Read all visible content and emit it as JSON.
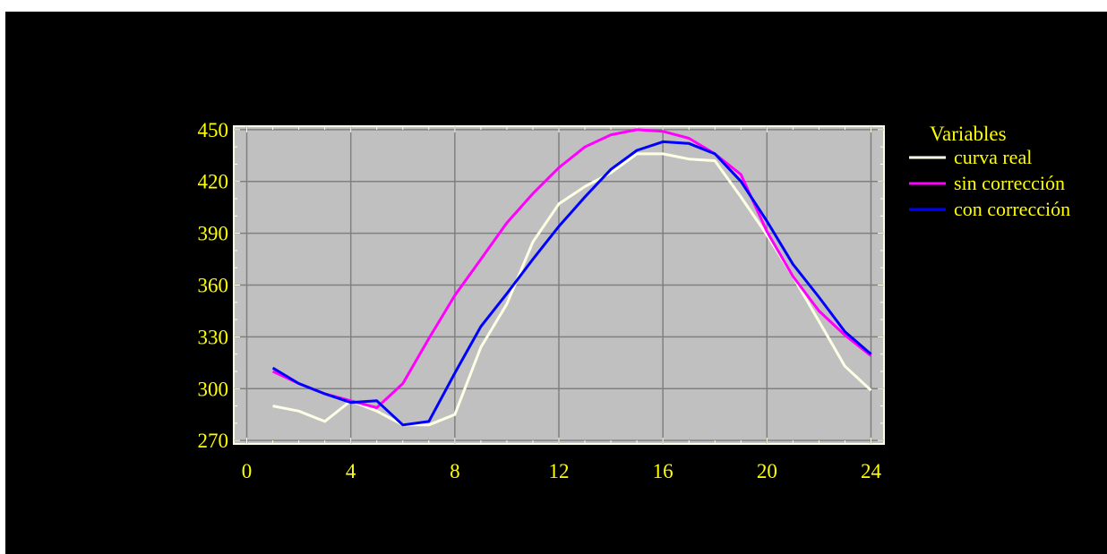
{
  "chart_data": {
    "type": "line",
    "title": "",
    "xlabel": "",
    "ylabel": "",
    "xlim": [
      -0.5,
      24.5
    ],
    "ylim": [
      268,
      452
    ],
    "x_ticks": [
      0,
      4,
      8,
      12,
      16,
      20,
      24
    ],
    "y_ticks": [
      270,
      300,
      330,
      360,
      390,
      420,
      450
    ],
    "grid": true,
    "legend": {
      "title": "Variables",
      "placement": "right",
      "entries": [
        "curva real",
        "sin corrección",
        "con corrección"
      ]
    },
    "x": [
      1,
      2,
      3,
      4,
      5,
      6,
      7,
      8,
      9,
      10,
      11,
      12,
      13,
      14,
      15,
      16,
      17,
      18,
      19,
      20,
      21,
      22,
      23,
      24
    ],
    "series": [
      {
        "name": "curva real",
        "color": "#ffffe6",
        "values": [
          290,
          287,
          281,
          293,
          287,
          279,
          279,
          285,
          324,
          349,
          385,
          407,
          417,
          425,
          436,
          436,
          433,
          432,
          411,
          389,
          365,
          339,
          313,
          299
        ]
      },
      {
        "name": "sin corrección",
        "color": "#ff00ff",
        "values": [
          310,
          303,
          297,
          293,
          289,
          303,
          329,
          354,
          375,
          396,
          413,
          428,
          440,
          447,
          450,
          449,
          445,
          436,
          424,
          391,
          365,
          345,
          331,
          319
        ]
      },
      {
        "name": "con corrección",
        "color": "#0000ff",
        "values": [
          312,
          303,
          297,
          292,
          293,
          279,
          281,
          309,
          336,
          355,
          375,
          394,
          411,
          427,
          438,
          443,
          442,
          436,
          420,
          397,
          372,
          353,
          333,
          320
        ]
      }
    ]
  },
  "colors": {
    "background": "#000000",
    "plot_area": "#c0c0c0",
    "grid": "#808080",
    "frame": "#ffffe6",
    "labels": "#ffff00"
  }
}
